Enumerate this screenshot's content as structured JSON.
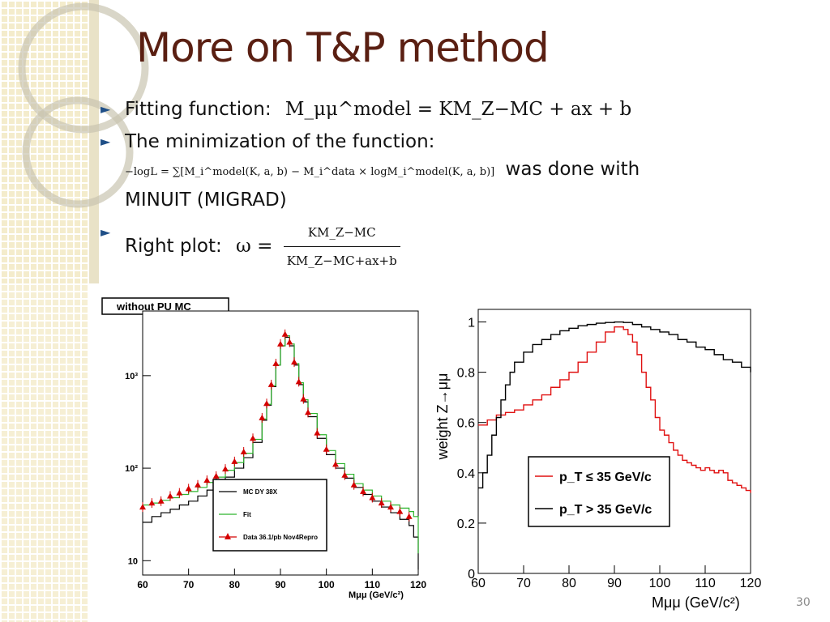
{
  "slide": {
    "title": "More on T&P method",
    "page_number": "30",
    "bullet1_text": "Fitting function:",
    "bullet1_formula": "M_μμ^model = KM_Z−MC + ax + b",
    "bullet2_text": "The minimization of the function:",
    "bullet2_formula": "−logL = ∑[M_i^model(K, a, b) − M_i^data × logM_i^model(K, a, b)]",
    "bullet2_tail": "was done with",
    "bullet2_cont": "MINUIT (MIGRAD)",
    "bullet3_text": "Right plot:",
    "bullet3_lhs": "ω =",
    "bullet3_num": "KM_Z−MC",
    "bullet3_den": "KM_Z−MC+ax+b",
    "colors": {
      "title": "#5a1f12",
      "bullet": "#1f4f87"
    }
  },
  "chart_data": [
    {
      "type": "line",
      "header_label": "without PU MC",
      "xlabel": "Mμμ (GeV/c²)",
      "ylabel": "",
      "xlim": [
        60,
        120
      ],
      "ylim": [
        7,
        5000
      ],
      "log_y": true,
      "x_ticks": [
        "60",
        "70",
        "80",
        "90",
        "100",
        "110",
        "120"
      ],
      "y_ticks": [
        "10",
        "10²",
        "10³"
      ],
      "legend_position": "bottom-right",
      "series": [
        {
          "name": "MC DY 38X",
          "color": "#000000",
          "x": [
            60,
            62,
            64,
            66,
            68,
            70,
            72,
            74,
            76,
            78,
            80,
            82,
            84,
            86,
            87,
            88,
            89,
            90,
            91,
            92,
            93,
            94,
            95,
            96,
            98,
            100,
            102,
            104,
            106,
            108,
            110,
            112,
            114,
            116,
            118,
            119,
            120
          ],
          "y": [
            26,
            30,
            33,
            36,
            40,
            44,
            50,
            58,
            68,
            80,
            100,
            130,
            190,
            330,
            480,
            760,
            1300,
            2100,
            2600,
            2100,
            1300,
            800,
            520,
            360,
            210,
            140,
            100,
            78,
            62,
            52,
            44,
            38,
            33,
            28,
            24,
            18,
            8
          ]
        },
        {
          "name": "Fit",
          "color": "#2fb52f",
          "x": [
            60,
            62,
            64,
            66,
            68,
            70,
            72,
            74,
            76,
            78,
            80,
            82,
            84,
            86,
            87,
            88,
            89,
            90,
            91,
            92,
            93,
            94,
            95,
            96,
            98,
            100,
            102,
            104,
            106,
            108,
            110,
            112,
            114,
            116,
            118,
            119,
            120
          ],
          "y": [
            40,
            42,
            45,
            48,
            52,
            56,
            62,
            70,
            80,
            95,
            115,
            145,
            205,
            340,
            490,
            780,
            1300,
            2100,
            2700,
            2200,
            1350,
            840,
            550,
            390,
            230,
            155,
            112,
            86,
            68,
            58,
            50,
            44,
            40,
            37,
            34,
            30,
            12
          ]
        },
        {
          "name": "Data 36.1/pb Nov4Repro",
          "color": "#d40000",
          "x": [
            60,
            62,
            64,
            66,
            68,
            70,
            72,
            74,
            76,
            78,
            80,
            82,
            84,
            86,
            87,
            88,
            89,
            90,
            91,
            92,
            93,
            94,
            95,
            96,
            98,
            100,
            102,
            104,
            106,
            108,
            110,
            112,
            114,
            116,
            118
          ],
          "y": [
            38,
            42,
            44,
            50,
            54,
            60,
            66,
            74,
            82,
            98,
            118,
            150,
            210,
            350,
            500,
            800,
            1350,
            2200,
            2800,
            2300,
            1400,
            860,
            560,
            400,
            240,
            160,
            110,
            84,
            66,
            56,
            48,
            42,
            38,
            34,
            30
          ]
        }
      ]
    },
    {
      "type": "line",
      "xlabel": "Mμμ (GeV/c²)",
      "ylabel": "weight Z→μμ",
      "xlim": [
        60,
        120
      ],
      "ylim": [
        0,
        1.05
      ],
      "x_ticks": [
        "60",
        "70",
        "80",
        "90",
        "100",
        "110",
        "120"
      ],
      "y_ticks": [
        "0",
        "0.2",
        "0.4",
        "0.6",
        "0.8",
        "1"
      ],
      "legend_position": "bottom-right",
      "series": [
        {
          "name": "p_T ≤ 35 GeV/c",
          "color": "#e01010",
          "x": [
            60,
            62,
            64,
            66,
            68,
            70,
            72,
            74,
            76,
            78,
            80,
            82,
            84,
            86,
            88,
            90,
            91,
            92,
            93,
            94,
            95,
            96,
            97,
            98,
            99,
            100,
            101,
            102,
            103,
            104,
            105,
            106,
            107,
            108,
            109,
            110,
            111,
            112,
            113,
            114,
            115,
            116,
            117,
            118,
            119,
            120
          ],
          "y": [
            0.59,
            0.61,
            0.63,
            0.64,
            0.65,
            0.67,
            0.69,
            0.71,
            0.74,
            0.77,
            0.8,
            0.84,
            0.88,
            0.92,
            0.96,
            0.98,
            0.98,
            0.97,
            0.95,
            0.92,
            0.87,
            0.8,
            0.74,
            0.69,
            0.62,
            0.57,
            0.55,
            0.52,
            0.49,
            0.47,
            0.45,
            0.44,
            0.43,
            0.42,
            0.41,
            0.42,
            0.41,
            0.4,
            0.41,
            0.4,
            0.37,
            0.36,
            0.35,
            0.34,
            0.33,
            0.32
          ]
        },
        {
          "name": "p_T > 35 GeV/c",
          "color": "#000000",
          "x": [
            60,
            61,
            62,
            63,
            64,
            65,
            66,
            67,
            68,
            70,
            72,
            74,
            76,
            78,
            80,
            82,
            84,
            86,
            88,
            90,
            92,
            94,
            96,
            98,
            100,
            102,
            104,
            106,
            108,
            110,
            112,
            114,
            116,
            118,
            120
          ],
          "y": [
            0.34,
            0.4,
            0.47,
            0.55,
            0.62,
            0.69,
            0.75,
            0.8,
            0.84,
            0.88,
            0.91,
            0.93,
            0.95,
            0.965,
            0.975,
            0.985,
            0.99,
            0.995,
            0.998,
            1.0,
            0.998,
            0.99,
            0.98,
            0.97,
            0.96,
            0.95,
            0.93,
            0.92,
            0.9,
            0.89,
            0.87,
            0.85,
            0.84,
            0.82,
            0.8
          ]
        }
      ]
    }
  ]
}
